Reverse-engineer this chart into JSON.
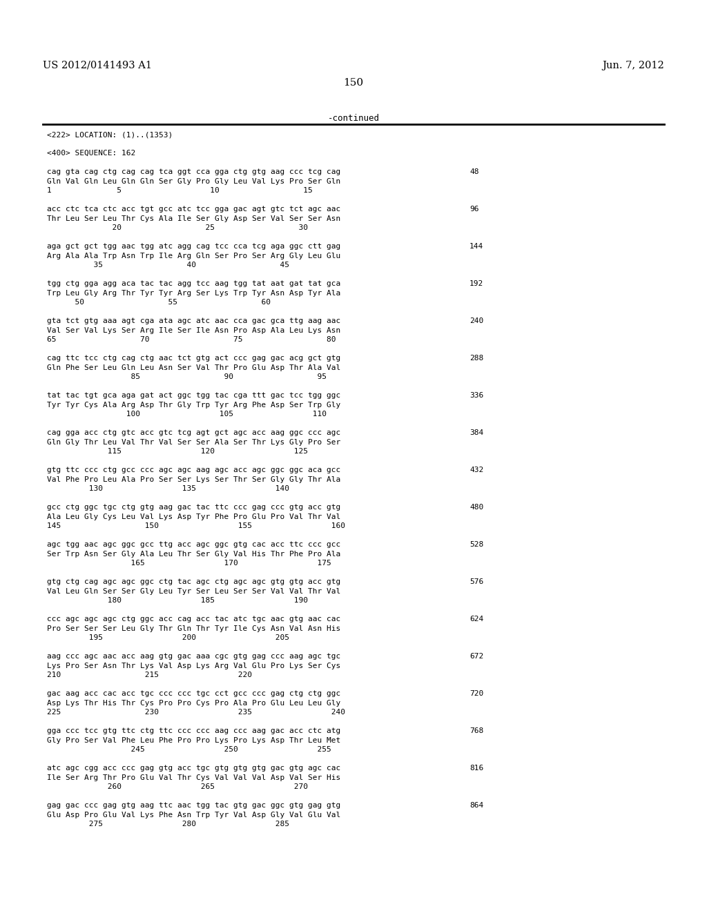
{
  "header_left": "US 2012/0141493 A1",
  "header_right": "Jun. 7, 2012",
  "page_number": "150",
  "continued_text": "-continued",
  "background_color": "#ffffff",
  "text_color": "#000000",
  "line1_label": "<222> LOCATION: (1)..(1353)",
  "line2_label": "<400> SEQUENCE: 162",
  "blocks": [
    {
      "dna": "cag gta cag ctg cag cag tca ggt cca gga ctg gtg aag ccc tcg cag",
      "num": "48",
      "aa": "Gln Val Gln Leu Gln Gln Ser Gly Pro Gly Leu Val Lys Pro Ser Gln",
      "pos": "1              5                   10                  15"
    },
    {
      "dna": "acc ctc tca ctc acc tgt gcc atc tcc gga gac agt gtc tct agc aac",
      "num": "96",
      "aa": "Thr Leu Ser Leu Thr Cys Ala Ile Ser Gly Asp Ser Val Ser Ser Asn",
      "pos": "              20                  25                  30"
    },
    {
      "dna": "aga gct gct tgg aac tgg atc agg cag tcc cca tcg aga ggc ctt gag",
      "num": "144",
      "aa": "Arg Ala Ala Trp Asn Trp Ile Arg Gln Ser Pro Ser Arg Gly Leu Glu",
      "pos": "          35                  40                  45"
    },
    {
      "dna": "tgg ctg gga agg aca tac tac agg tcc aag tgg tat aat gat tat gca",
      "num": "192",
      "aa": "Trp Leu Gly Arg Thr Tyr Tyr Arg Ser Lys Trp Tyr Asn Asp Tyr Ala",
      "pos": "      50                  55                  60"
    },
    {
      "dna": "gta tct gtg aaa agt cga ata agc atc aac cca gac gca ttg aag aac",
      "num": "240",
      "aa": "Val Ser Val Lys Ser Arg Ile Ser Ile Asn Pro Asp Ala Leu Lys Asn",
      "pos": "65                  70                  75                  80"
    },
    {
      "dna": "cag ttc tcc ctg cag ctg aac tct gtg act ccc gag gac acg gct gtg",
      "num": "288",
      "aa": "Gln Phe Ser Leu Gln Leu Asn Ser Val Thr Pro Glu Asp Thr Ala Val",
      "pos": "                  85                  90                  95"
    },
    {
      "dna": "tat tac tgt gca aga gat act ggc tgg tac cga ttt gac tcc tgg ggc",
      "num": "336",
      "aa": "Tyr Tyr Cys Ala Arg Asp Thr Gly Trp Tyr Arg Phe Asp Ser Trp Gly",
      "pos": "                 100                 105                 110"
    },
    {
      "dna": "cag gga acc ctg gtc acc gtc tcg agt gct agc acc aag ggc ccc agc",
      "num": "384",
      "aa": "Gln Gly Thr Leu Val Thr Val Ser Ser Ala Ser Thr Lys Gly Pro Ser",
      "pos": "             115                 120                 125"
    },
    {
      "dna": "gtg ttc ccc ctg gcc ccc agc agc aag agc acc agc ggc ggc aca gcc",
      "num": "432",
      "aa": "Val Phe Pro Leu Ala Pro Ser Ser Lys Ser Thr Ser Gly Gly Thr Ala",
      "pos": "         130                 135                 140"
    },
    {
      "dna": "gcc ctg ggc tgc ctg gtg aag gac tac ttc ccc gag ccc gtg acc gtg",
      "num": "480",
      "aa": "Ala Leu Gly Cys Leu Val Lys Asp Tyr Phe Pro Glu Pro Val Thr Val",
      "pos": "145                  150                 155                 160"
    },
    {
      "dna": "agc tgg aac agc ggc gcc ttg acc agc ggc gtg cac acc ttc ccc gcc",
      "num": "528",
      "aa": "Ser Trp Asn Ser Gly Ala Leu Thr Ser Gly Val His Thr Phe Pro Ala",
      "pos": "                  165                 170                 175"
    },
    {
      "dna": "gtg ctg cag agc agc ggc ctg tac agc ctg agc agc gtg gtg acc gtg",
      "num": "576",
      "aa": "Val Leu Gln Ser Ser Gly Leu Tyr Ser Leu Ser Ser Val Val Thr Val",
      "pos": "             180                 185                 190"
    },
    {
      "dna": "ccc agc agc agc ctg ggc acc cag acc tac atc tgc aac gtg aac cac",
      "num": "624",
      "aa": "Pro Ser Ser Ser Leu Gly Thr Gln Thr Tyr Ile Cys Asn Val Asn His",
      "pos": "         195                 200                 205"
    },
    {
      "dna": "aag ccc agc aac acc aag gtg gac aaa cgc gtg gag ccc aag agc tgc",
      "num": "672",
      "aa": "Lys Pro Ser Asn Thr Lys Val Asp Lys Arg Val Glu Pro Lys Ser Cys",
      "pos": "210                  215                 220"
    },
    {
      "dna": "gac aag acc cac acc tgc ccc ccc tgc cct gcc ccc gag ctg ctg ggc",
      "num": "720",
      "aa": "Asp Lys Thr His Thr Cys Pro Pro Cys Pro Ala Pro Glu Leu Leu Gly",
      "pos": "225                  230                 235                 240"
    },
    {
      "dna": "gga ccc tcc gtg ttc ctg ttc ccc ccc aag ccc aag gac acc ctc atg",
      "num": "768",
      "aa": "Gly Pro Ser Val Phe Leu Phe Pro Pro Lys Pro Lys Asp Thr Leu Met",
      "pos": "                  245                 250                 255"
    },
    {
      "dna": "atc agc cgg acc ccc gag gtg acc tgc gtg gtg gtg gac gtg agc cac",
      "num": "816",
      "aa": "Ile Ser Arg Thr Pro Glu Val Thr Cys Val Val Val Asp Val Ser His",
      "pos": "             260                 265                 270"
    },
    {
      "dna": "gag gac ccc gag gtg aag ttc aac tgg tac gtg gac ggc gtg gag gtg",
      "num": "864",
      "aa": "Glu Asp Pro Glu Val Lys Phe Asn Trp Tyr Val Asp Gly Val Glu Val",
      "pos": "         275                 280                 285"
    }
  ]
}
